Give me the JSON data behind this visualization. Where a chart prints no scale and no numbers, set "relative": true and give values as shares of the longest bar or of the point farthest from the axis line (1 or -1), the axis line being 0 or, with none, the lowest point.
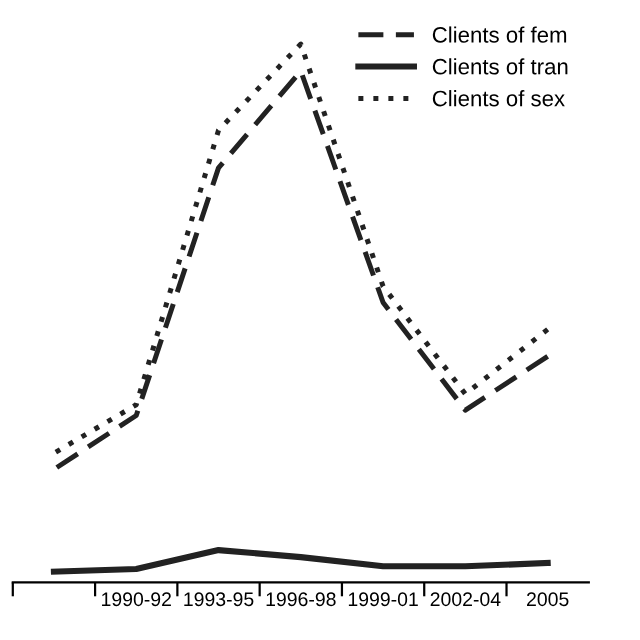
{
  "chart_data": {
    "type": "line",
    "relative": true,
    "categories": [
      null,
      "1990-92",
      "1993-95",
      "1996-98",
      "1999-01",
      "2002-04",
      "2005"
    ],
    "series": [
      {
        "name": "Clients of fem",
        "color": "#222222",
        "line_style": "dashed",
        "values": [
          0.21,
          0.31,
          0.77,
          0.95,
          0.52,
          0.32,
          0.42
        ]
      },
      {
        "name": "Clients of tran",
        "color": "#222222",
        "line_style": "solid",
        "values": [
          0.02,
          0.025,
          0.06,
          0.047,
          0.03,
          0.03,
          0.036
        ]
      },
      {
        "name": "Clients of sex",
        "color": "#222222",
        "line_style": "dotted",
        "values": [
          0.24,
          0.33,
          0.84,
          1,
          0.55,
          0.35,
          0.47
        ]
      }
    ],
    "legend": "top right",
    "grid": false,
    "marker": "none"
  }
}
